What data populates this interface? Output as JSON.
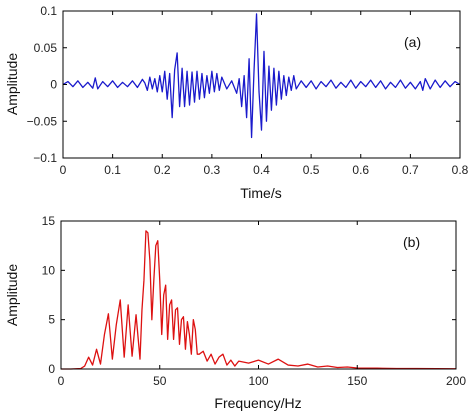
{
  "chart_data": [
    {
      "type": "line",
      "panel_label": "(a)",
      "xlabel": "Time/s",
      "ylabel": "Amplitude",
      "xlim": [
        0,
        0.8
      ],
      "ylim": [
        -0.1,
        0.1
      ],
      "xticks": [
        0,
        0.1,
        0.2,
        0.3,
        0.4,
        0.5,
        0.6,
        0.7,
        0.8
      ],
      "xtick_labels": [
        "0",
        "0.1",
        "0.2",
        "0.3",
        "0.4",
        "0.5",
        "0.6",
        "0.7",
        "0.8"
      ],
      "yticks": [
        -0.1,
        -0.05,
        0,
        0.05,
        0.1
      ],
      "ytick_labels": [
        "−0.1",
        "−0.05",
        "0",
        "0.05",
        "0.1"
      ],
      "grid": false,
      "legend": "none",
      "series": [
        {
          "color": "#1a1acc",
          "x": [
            0,
            0.01,
            0.02,
            0.03,
            0.04,
            0.05,
            0.06,
            0.065,
            0.07,
            0.08,
            0.09,
            0.1,
            0.11,
            0.12,
            0.13,
            0.14,
            0.15,
            0.16,
            0.165,
            0.17,
            0.175,
            0.18,
            0.185,
            0.19,
            0.195,
            0.2,
            0.205,
            0.21,
            0.215,
            0.22,
            0.225,
            0.23,
            0.235,
            0.24,
            0.245,
            0.25,
            0.255,
            0.26,
            0.265,
            0.27,
            0.275,
            0.28,
            0.285,
            0.29,
            0.295,
            0.3,
            0.305,
            0.31,
            0.315,
            0.32,
            0.33,
            0.34,
            0.35,
            0.355,
            0.36,
            0.365,
            0.37,
            0.375,
            0.38,
            0.385,
            0.39,
            0.395,
            0.4,
            0.405,
            0.41,
            0.415,
            0.42,
            0.425,
            0.43,
            0.435,
            0.44,
            0.445,
            0.45,
            0.455,
            0.46,
            0.465,
            0.47,
            0.48,
            0.49,
            0.5,
            0.51,
            0.52,
            0.53,
            0.54,
            0.55,
            0.56,
            0.57,
            0.58,
            0.59,
            0.6,
            0.61,
            0.62,
            0.63,
            0.64,
            0.65,
            0.66,
            0.67,
            0.68,
            0.69,
            0.7,
            0.71,
            0.72,
            0.725,
            0.73,
            0.74,
            0.75,
            0.76,
            0.77,
            0.78,
            0.79,
            0.8
          ],
          "y": [
            0,
            0.004,
            -0.003,
            0.005,
            -0.004,
            0.003,
            -0.005,
            0.009,
            -0.006,
            0.004,
            -0.003,
            0.005,
            -0.004,
            0.003,
            -0.003,
            0.005,
            -0.004,
            0.007,
            0.002,
            -0.008,
            0.01,
            -0.006,
            0.008,
            -0.01,
            0.012,
            -0.01,
            0.018,
            -0.02,
            0.015,
            -0.045,
            0.02,
            0.043,
            -0.03,
            0.022,
            -0.03,
            0.018,
            -0.028,
            0.017,
            -0.024,
            0.018,
            -0.02,
            0.015,
            -0.018,
            0.012,
            -0.012,
            0.018,
            -0.01,
            0.015,
            -0.008,
            0.01,
            -0.006,
            0.005,
            -0.012,
            0.008,
            -0.03,
            0.012,
            -0.045,
            0.035,
            -0.072,
            0.02,
            0.096,
            -0.01,
            -0.062,
            0.045,
            -0.05,
            0.025,
            -0.035,
            0.022,
            -0.028,
            0.018,
            -0.02,
            0.012,
            -0.015,
            0.01,
            -0.008,
            0.012,
            -0.006,
            0.005,
            -0.004,
            0.005,
            -0.006,
            0.004,
            -0.003,
            0.006,
            -0.005,
            0.003,
            -0.004,
            0.006,
            -0.005,
            0.004,
            -0.003,
            0.006,
            -0.004,
            0.005,
            -0.006,
            0.003,
            -0.004,
            0.006,
            -0.005,
            0.003,
            -0.006,
            0.004,
            -0.008,
            0.008,
            -0.006,
            0.006,
            -0.004,
            0.005,
            -0.003,
            0.004,
            0
          ]
        }
      ]
    },
    {
      "type": "line",
      "panel_label": "(b)",
      "xlabel": "Frequency/Hz",
      "ylabel": "Amplitude",
      "xlim": [
        0,
        200
      ],
      "ylim": [
        0,
        15
      ],
      "xticks": [
        0,
        50,
        100,
        150,
        200
      ],
      "xtick_labels": [
        "0",
        "50",
        "100",
        "150",
        "200"
      ],
      "yticks": [
        0,
        5,
        10,
        15
      ],
      "ytick_labels": [
        "0",
        "5",
        "10",
        "15"
      ],
      "grid": false,
      "legend": "none",
      "series": [
        {
          "color": "#dd1111",
          "x": [
            0,
            5,
            10,
            12,
            14,
            16,
            18,
            20,
            22,
            24,
            26,
            28,
            30,
            32,
            34,
            36,
            38,
            40,
            41,
            42,
            43,
            44,
            45,
            46,
            47,
            48,
            49,
            50,
            51,
            52,
            53,
            54,
            55,
            56,
            57,
            58,
            59,
            60,
            61,
            62,
            63,
            64,
            65,
            66,
            67,
            68,
            69,
            70,
            72,
            74,
            76,
            78,
            80,
            82,
            84,
            86,
            88,
            90,
            95,
            100,
            105,
            110,
            115,
            120,
            125,
            130,
            135,
            140,
            145,
            150,
            160,
            170,
            180,
            190,
            200
          ],
          "y": [
            0,
            0,
            0.05,
            0.3,
            1.2,
            0.4,
            2.0,
            0.5,
            3.5,
            5.6,
            1.0,
            4.5,
            7.0,
            1.2,
            6.5,
            1.3,
            5.5,
            1.0,
            6.0,
            9.0,
            14.0,
            13.8,
            11.0,
            5.0,
            9.0,
            12.5,
            13.0,
            9.0,
            3.5,
            7.5,
            8.5,
            3.0,
            6.5,
            7.0,
            3.0,
            6.0,
            6.2,
            2.5,
            5.0,
            5.3,
            2.0,
            4.8,
            3.5,
            1.5,
            5.0,
            4.0,
            1.5,
            1.5,
            1.8,
            0.8,
            1.5,
            0.5,
            1.2,
            1.5,
            0.4,
            0.9,
            0.3,
            0.8,
            0.6,
            0.9,
            0.5,
            1.0,
            0.4,
            0.3,
            0.5,
            0.2,
            0.3,
            0.15,
            0.2,
            0.1,
            0.08,
            0.05,
            0.05,
            0.03,
            0.02
          ]
        }
      ]
    }
  ]
}
